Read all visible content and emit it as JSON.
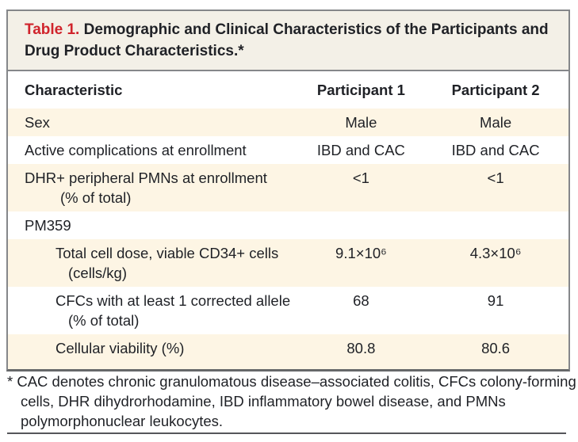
{
  "table": {
    "title_label": "Table 1.",
    "title_text": "Demographic and Clinical Characteristics of the Participants and Drug Product Characteristics.*",
    "columns": [
      "Characteristic",
      "Participant 1",
      "Participant 2"
    ],
    "rows": [
      {
        "label": "Sex",
        "p1": "Male",
        "p2": "Male"
      },
      {
        "label": "Active complications at enrollment",
        "p1": "IBD and CAC",
        "p2": "IBD and CAC"
      },
      {
        "label": "DHR+ peripheral PMNs at enrollment",
        "label2": "(% of total)",
        "p1": "<1",
        "p2": "<1"
      },
      {
        "label": "PM359",
        "section": "true"
      },
      {
        "label": "Total cell dose, viable CD34+ cells",
        "label2": "(cells/kg)",
        "p1": "9.1×10⁶",
        "p2": "4.3×10⁶"
      },
      {
        "label": "CFCs with at least 1 corrected allele",
        "label2": "(% of total)",
        "p1": "68",
        "p2": "91"
      },
      {
        "label": "Cellular viability (%)",
        "p1": "80.8",
        "p2": "80.6"
      }
    ]
  },
  "footnote": {
    "marker": "*",
    "text": "CAC denotes chronic granulomatous disease–associated colitis, CFCs colony-forming cells, DHR dihydrorhodamine, IBD inflammatory bowel disease, and PMNs polymorphonuclear leukocytes."
  },
  "colors": {
    "accent_red": "#d0242c",
    "stripe_cream": "#fdf5e4",
    "title_band": "#f3f0e7",
    "border_gray": "#85878a",
    "text": "#1f2126"
  }
}
